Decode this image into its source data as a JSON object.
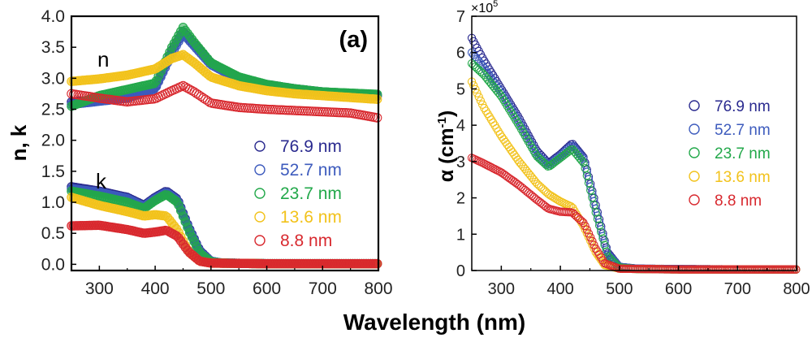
{
  "shared_xlabel": "Wavelength (nm)",
  "legend_markers": {
    "color_76_9": "#2a2a8f",
    "color_52_7": "#3d5bbd",
    "color_23_7": "#22a84a",
    "color_13_6": "#f2c21b",
    "color_8_8": "#d8282e"
  },
  "chart_data": [
    {
      "type": "scatter",
      "panel_label": "(a)",
      "ylabel": "n, k",
      "xlabel": "Wavelength (nm)",
      "xlim": [
        250,
        800
      ],
      "ylim": [
        -0.1,
        4.0
      ],
      "xticks": [
        300,
        400,
        500,
        600,
        700,
        800
      ],
      "xtick_labels": [
        "300",
        "400",
        "500",
        "600",
        "700",
        "800"
      ],
      "yticks": [
        0.0,
        0.5,
        1.0,
        1.5,
        2.0,
        2.5,
        3.0,
        3.5,
        4.0
      ],
      "ytick_labels": [
        "0.0",
        "0.5",
        "1.0",
        "1.5",
        "2.0",
        "2.5",
        "3.0",
        "3.5",
        "4.0"
      ],
      "annotations": [
        {
          "text": "n",
          "x": 270,
          "y": 3.33
        },
        {
          "text": "k",
          "x": 270,
          "y": 1.33
        }
      ],
      "legend": [
        "76.9 nm",
        "52.7 nm",
        "23.7 nm",
        "13.6 nm",
        "8.8 nm"
      ],
      "series": [
        {
          "name": "76.9 nm",
          "quantity": "n",
          "color": "#2a2a8f",
          "fill": true,
          "points": [
            [
              250,
              2.62
            ],
            [
              300,
              2.65
            ],
            [
              350,
              2.7
            ],
            [
              400,
              2.85
            ],
            [
              430,
              3.45
            ],
            [
              450,
              3.75
            ],
            [
              470,
              3.55
            ],
            [
              500,
              3.25
            ],
            [
              550,
              3.0
            ],
            [
              600,
              2.9
            ],
            [
              650,
              2.83
            ],
            [
              700,
              2.78
            ],
            [
              750,
              2.75
            ],
            [
              800,
              2.72
            ]
          ]
        },
        {
          "name": "52.7 nm",
          "quantity": "n",
          "color": "#3d5bbd",
          "fill": true,
          "points": [
            [
              250,
              2.58
            ],
            [
              300,
              2.63
            ],
            [
              350,
              2.68
            ],
            [
              400,
              2.83
            ],
            [
              430,
              3.4
            ],
            [
              450,
              3.72
            ],
            [
              470,
              3.52
            ],
            [
              500,
              3.22
            ],
            [
              550,
              2.98
            ],
            [
              600,
              2.88
            ],
            [
              650,
              2.81
            ],
            [
              700,
              2.77
            ],
            [
              750,
              2.74
            ],
            [
              800,
              2.71
            ]
          ]
        },
        {
          "name": "23.7 nm",
          "quantity": "n",
          "color": "#22a84a",
          "fill": true,
          "points": [
            [
              250,
              2.55
            ],
            [
              300,
              2.72
            ],
            [
              350,
              2.82
            ],
            [
              400,
              2.92
            ],
            [
              430,
              3.5
            ],
            [
              450,
              3.82
            ],
            [
              470,
              3.58
            ],
            [
              500,
              3.25
            ],
            [
              550,
              3.02
            ],
            [
              600,
              2.9
            ],
            [
              650,
              2.83
            ],
            [
              700,
              2.78
            ],
            [
              750,
              2.76
            ],
            [
              800,
              2.74
            ]
          ]
        },
        {
          "name": "13.6 nm",
          "quantity": "n",
          "color": "#f2c21b",
          "fill": true,
          "points": [
            [
              250,
              2.95
            ],
            [
              300,
              2.99
            ],
            [
              350,
              3.05
            ],
            [
              400,
              3.15
            ],
            [
              430,
              3.32
            ],
            [
              450,
              3.38
            ],
            [
              470,
              3.25
            ],
            [
              500,
              3.02
            ],
            [
              550,
              2.88
            ],
            [
              600,
              2.8
            ],
            [
              650,
              2.75
            ],
            [
              700,
              2.72
            ],
            [
              750,
              2.69
            ],
            [
              800,
              2.66
            ]
          ]
        },
        {
          "name": "8.8 nm",
          "quantity": "n",
          "color": "#d8282e",
          "fill": false,
          "points": [
            [
              250,
              2.75
            ],
            [
              300,
              2.68
            ],
            [
              350,
              2.62
            ],
            [
              400,
              2.67
            ],
            [
              430,
              2.8
            ],
            [
              450,
              2.88
            ],
            [
              470,
              2.78
            ],
            [
              500,
              2.6
            ],
            [
              550,
              2.53
            ],
            [
              600,
              2.5
            ],
            [
              650,
              2.48
            ],
            [
              700,
              2.46
            ],
            [
              750,
              2.44
            ],
            [
              800,
              2.36
            ]
          ]
        },
        {
          "name": "76.9 nm",
          "quantity": "k",
          "color": "#2a2a8f",
          "fill": true,
          "points": [
            [
              250,
              1.25
            ],
            [
              300,
              1.18
            ],
            [
              350,
              1.08
            ],
            [
              380,
              0.95
            ],
            [
              400,
              1.08
            ],
            [
              420,
              1.18
            ],
            [
              440,
              1.05
            ],
            [
              460,
              0.6
            ],
            [
              480,
              0.22
            ],
            [
              500,
              0.05
            ],
            [
              520,
              0.02
            ],
            [
              600,
              0.01
            ],
            [
              700,
              0.01
            ],
            [
              800,
              0.01
            ]
          ]
        },
        {
          "name": "52.7 nm",
          "quantity": "k",
          "color": "#3d5bbd",
          "fill": true,
          "points": [
            [
              250,
              1.22
            ],
            [
              300,
              1.16
            ],
            [
              350,
              1.06
            ],
            [
              380,
              0.93
            ],
            [
              400,
              1.06
            ],
            [
              420,
              1.16
            ],
            [
              440,
              1.03
            ],
            [
              460,
              0.58
            ],
            [
              480,
              0.2
            ],
            [
              500,
              0.05
            ],
            [
              520,
              0.02
            ],
            [
              600,
              0.01
            ],
            [
              700,
              0.01
            ],
            [
              800,
              0.01
            ]
          ]
        },
        {
          "name": "23.7 nm",
          "quantity": "k",
          "color": "#22a84a",
          "fill": true,
          "points": [
            [
              250,
              1.18
            ],
            [
              300,
              1.1
            ],
            [
              350,
              1.0
            ],
            [
              380,
              0.9
            ],
            [
              400,
              1.03
            ],
            [
              420,
              1.13
            ],
            [
              440,
              1.0
            ],
            [
              460,
              0.55
            ],
            [
              480,
              0.18
            ],
            [
              500,
              0.04
            ],
            [
              520,
              0.02
            ],
            [
              600,
              0.01
            ],
            [
              700,
              0.01
            ],
            [
              800,
              0.01
            ]
          ]
        },
        {
          "name": "13.6 nm",
          "quantity": "k",
          "color": "#f2c21b",
          "fill": true,
          "points": [
            [
              250,
              1.08
            ],
            [
              300,
              0.95
            ],
            [
              350,
              0.85
            ],
            [
              380,
              0.78
            ],
            [
              400,
              0.8
            ],
            [
              420,
              0.78
            ],
            [
              440,
              0.55
            ],
            [
              460,
              0.2
            ],
            [
              480,
              0.05
            ],
            [
              500,
              0.02
            ],
            [
              600,
              0.01
            ],
            [
              700,
              0.01
            ],
            [
              800,
              0.01
            ]
          ]
        },
        {
          "name": "8.8 nm",
          "quantity": "k",
          "color": "#d8282e",
          "fill": true,
          "points": [
            [
              250,
              0.62
            ],
            [
              300,
              0.63
            ],
            [
              350,
              0.56
            ],
            [
              380,
              0.5
            ],
            [
              400,
              0.52
            ],
            [
              420,
              0.55
            ],
            [
              440,
              0.45
            ],
            [
              460,
              0.2
            ],
            [
              480,
              0.05
            ],
            [
              500,
              0.02
            ],
            [
              600,
              0.01
            ],
            [
              700,
              0.01
            ],
            [
              800,
              0.01
            ]
          ]
        }
      ]
    },
    {
      "type": "scatter",
      "ylabel": "α (cm",
      "ylabel_sup": "-1",
      "ylabel_close": ")",
      "y_multiplier_prefix": "×10",
      "y_multiplier_exp": "5",
      "xlabel": "Wavelength (nm)",
      "xlim": [
        250,
        800
      ],
      "ylim": [
        0,
        7
      ],
      "xticks": [
        300,
        400,
        500,
        600,
        700,
        800
      ],
      "xtick_labels": [
        "300",
        "400",
        "500",
        "600",
        "700",
        "800"
      ],
      "yticks": [
        0,
        1,
        2,
        3,
        4,
        5,
        6,
        7
      ],
      "ytick_labels": [
        "0",
        "1",
        "2",
        "3",
        "4",
        "5",
        "6",
        "7"
      ],
      "legend": [
        "76.9 nm",
        "52.7 nm",
        "23.7 nm",
        "13.6 nm",
        "8.8 nm"
      ],
      "series": [
        {
          "name": "76.9 nm",
          "color": "#2a2a8f",
          "fill": false,
          "points": [
            [
              250,
              6.4
            ],
            [
              270,
              5.8
            ],
            [
              300,
              5.0
            ],
            [
              330,
              4.2
            ],
            [
              360,
              3.3
            ],
            [
              380,
              2.95
            ],
            [
              400,
              3.2
            ],
            [
              420,
              3.5
            ],
            [
              440,
              3.1
            ],
            [
              460,
              1.8
            ],
            [
              480,
              0.5
            ],
            [
              500,
              0.1
            ],
            [
              530,
              0.05
            ],
            [
              600,
              0.04
            ],
            [
              700,
              0.03
            ],
            [
              800,
              0.03
            ]
          ]
        },
        {
          "name": "52.7 nm",
          "color": "#3d5bbd",
          "fill": false,
          "points": [
            [
              250,
              6.0
            ],
            [
              270,
              5.6
            ],
            [
              300,
              4.9
            ],
            [
              330,
              4.1
            ],
            [
              360,
              3.2
            ],
            [
              380,
              2.9
            ],
            [
              400,
              3.15
            ],
            [
              420,
              3.45
            ],
            [
              440,
              3.05
            ],
            [
              460,
              1.7
            ],
            [
              480,
              0.45
            ],
            [
              500,
              0.1
            ],
            [
              530,
              0.05
            ],
            [
              600,
              0.04
            ],
            [
              700,
              0.03
            ],
            [
              800,
              0.03
            ]
          ]
        },
        {
          "name": "23.7 nm",
          "color": "#22a84a",
          "fill": false,
          "points": [
            [
              250,
              5.7
            ],
            [
              270,
              5.4
            ],
            [
              300,
              4.8
            ],
            [
              330,
              4.0
            ],
            [
              360,
              3.15
            ],
            [
              380,
              2.85
            ],
            [
              400,
              3.1
            ],
            [
              420,
              3.35
            ],
            [
              440,
              2.95
            ],
            [
              460,
              1.6
            ],
            [
              480,
              0.4
            ],
            [
              500,
              0.08
            ],
            [
              530,
              0.04
            ],
            [
              600,
              0.03
            ],
            [
              700,
              0.03
            ],
            [
              800,
              0.03
            ]
          ]
        },
        {
          "name": "13.6 nm",
          "color": "#f2c21b",
          "fill": false,
          "points": [
            [
              250,
              5.2
            ],
            [
              270,
              4.5
            ],
            [
              300,
              3.7
            ],
            [
              330,
              3.0
            ],
            [
              360,
              2.4
            ],
            [
              380,
              2.1
            ],
            [
              400,
              1.9
            ],
            [
              420,
              1.75
            ],
            [
              440,
              1.2
            ],
            [
              460,
              0.5
            ],
            [
              475,
              0.15
            ],
            [
              500,
              0.05
            ],
            [
              600,
              0.03
            ],
            [
              700,
              0.03
            ],
            [
              800,
              0.03
            ]
          ]
        },
        {
          "name": "8.8 nm",
          "color": "#d8282e",
          "fill": false,
          "points": [
            [
              250,
              3.1
            ],
            [
              270,
              2.95
            ],
            [
              300,
              2.7
            ],
            [
              330,
              2.35
            ],
            [
              360,
              1.95
            ],
            [
              380,
              1.7
            ],
            [
              400,
              1.62
            ],
            [
              420,
              1.6
            ],
            [
              440,
              1.3
            ],
            [
              460,
              0.6
            ],
            [
              475,
              0.2
            ],
            [
              500,
              0.05
            ],
            [
              600,
              0.03
            ],
            [
              700,
              0.03
            ],
            [
              800,
              0.03
            ]
          ]
        }
      ]
    }
  ]
}
